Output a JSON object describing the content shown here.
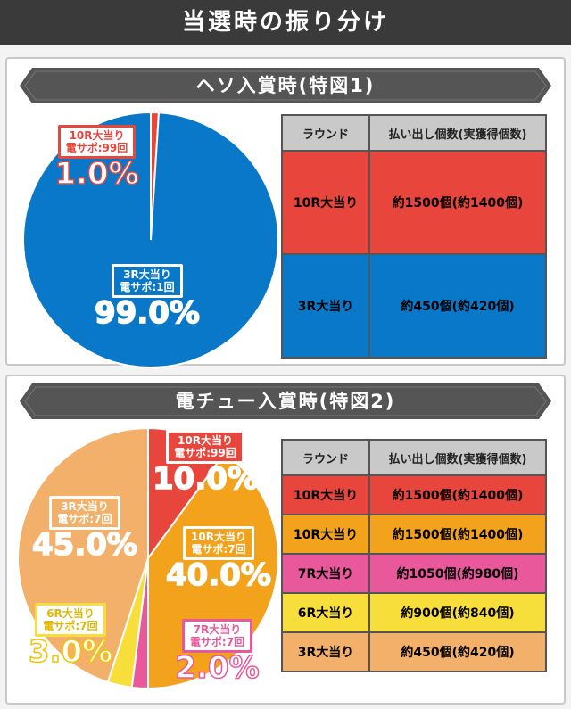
{
  "title": "当選時の振り分け",
  "sections": [
    {
      "heading": "ヘソ入賞時(特図1)",
      "table_headers": [
        "ラウンド",
        "払い出し個数(実獲得個数)"
      ],
      "rows": [
        {
          "round": "10R大当り",
          "payout": "約1500個(約1400個)",
          "color": "#e8453c"
        },
        {
          "round": "3R大当り",
          "payout": "約450個(約420個)",
          "color": "#0a78c8"
        }
      ],
      "slices": [
        {
          "line1": "10R大当り",
          "line2": "電サポ:99回",
          "pct_label": "1.0%",
          "value": 1.0,
          "color": "#e8453c"
        },
        {
          "line1": "3R大当り",
          "line2": "電サポ:1回",
          "pct_label": "99.0%",
          "value": 99.0,
          "color": "#0a78c8"
        }
      ]
    },
    {
      "heading": "電チュー入賞時(特図2)",
      "table_headers": [
        "ラウンド",
        "払い出し個数(実獲得個数)"
      ],
      "rows": [
        {
          "round": "10R大当り",
          "payout": "約1500個(約1400個)",
          "color": "#e8453c"
        },
        {
          "round": "10R大当り",
          "payout": "約1500個(約1400個)",
          "color": "#f3a21c"
        },
        {
          "round": "7R大当り",
          "payout": "約1050個(約980個)",
          "color": "#e8589a"
        },
        {
          "round": "6R大当り",
          "payout": "約900個(約840個)",
          "color": "#f7de3a"
        },
        {
          "round": "3R大当り",
          "payout": "約450個(約420個)",
          "color": "#f3b06b"
        }
      ],
      "slices": [
        {
          "line1": "10R大当り",
          "line2": "電サポ:99回",
          "pct_label": "10.0%",
          "value": 10.0,
          "color": "#e8453c"
        },
        {
          "line1": "10R大当り",
          "line2": "電サポ:7回",
          "pct_label": "40.0%",
          "value": 40.0,
          "color": "#f3a21c"
        },
        {
          "line1": "7R大当り",
          "line2": "電サポ:7回",
          "pct_label": "2.0%",
          "value": 2.0,
          "color": "#e8589a"
        },
        {
          "line1": "6R大当り",
          "line2": "電サポ:7回",
          "pct_label": "3.0%",
          "value": 3.0,
          "color": "#f7de3a"
        },
        {
          "line1": "3R大当り",
          "line2": "電サポ:7回",
          "pct_label": "45.0%",
          "value": 45.0,
          "color": "#f3b06b"
        }
      ]
    }
  ],
  "chart_data": [
    {
      "type": "pie",
      "title": "ヘソ入賞時(特図1)",
      "categories": [
        "10R大当り 電サポ:99回",
        "3R大当り 電サポ:1回"
      ],
      "values": [
        1.0,
        99.0
      ]
    },
    {
      "type": "pie",
      "title": "電チュー入賞時(特図2)",
      "categories": [
        "10R大当り 電サポ:99回",
        "10R大当り 電サポ:7回",
        "7R大当り 電サポ:7回",
        "6R大当り 電サポ:7回",
        "3R大当り 電サポ:7回"
      ],
      "values": [
        10.0,
        40.0,
        2.0,
        3.0,
        45.0
      ]
    }
  ]
}
